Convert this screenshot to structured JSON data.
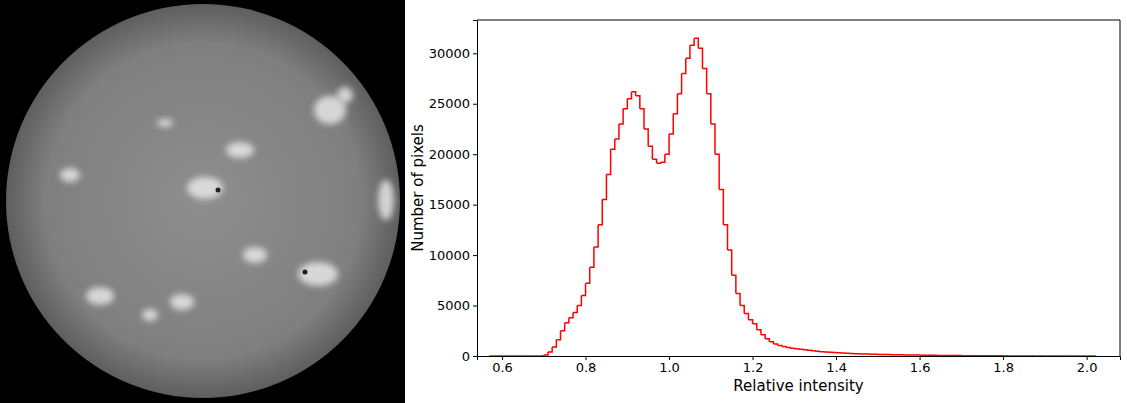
{
  "chart_data": {
    "type": "histogram",
    "x_label": "Relative intensity",
    "y_label": "Number of pixels",
    "color": "#ff0000",
    "xlim": [
      0.54,
      2.08
    ],
    "ylim": [
      0,
      33300
    ],
    "xticks": [
      0.6,
      0.8,
      {
        "value": 1,
        "label": "1.0"
      },
      1.2,
      1.4,
      1.6,
      1.8,
      {
        "value": 2,
        "label": "2.0"
      }
    ],
    "yticks": [
      0,
      5000,
      10000,
      15000,
      20000,
      25000,
      30000
    ],
    "bins": [
      0.57,
      0.58,
      0.59,
      0.6,
      0.61,
      0.62,
      0.63,
      0.64,
      0.65,
      0.66,
      0.67,
      0.68,
      0.69,
      0.7,
      0.71,
      0.72,
      0.73,
      0.74,
      0.75,
      0.76,
      0.77,
      0.78,
      0.79,
      0.8,
      0.81,
      0.82,
      0.83,
      0.84,
      0.85,
      0.86,
      0.87,
      0.88,
      0.89,
      0.9,
      0.91,
      0.92,
      0.93,
      0.94,
      0.95,
      0.96,
      0.97,
      0.98,
      0.99,
      1.0,
      1.01,
      1.02,
      1.03,
      1.04,
      1.05,
      1.06,
      1.07,
      1.08,
      1.09,
      1.1,
      1.11,
      1.12,
      1.13,
      1.14,
      1.15,
      1.16,
      1.17,
      1.18,
      1.19,
      1.2,
      1.21,
      1.22,
      1.23,
      1.24,
      1.25,
      1.26,
      1.27,
      1.28,
      1.29,
      1.3,
      1.31,
      1.32,
      1.33,
      1.34,
      1.35,
      1.36,
      1.37,
      1.38,
      1.39,
      1.4,
      1.41,
      1.42,
      1.43,
      1.44,
      1.45,
      1.46,
      1.47,
      1.48,
      1.49,
      1.5,
      1.51,
      1.52,
      1.53,
      1.54,
      1.55,
      1.56,
      1.57,
      1.58,
      1.59,
      1.6,
      1.61,
      1.62,
      1.63,
      1.64,
      1.65,
      1.66,
      1.67,
      1.68,
      1.69,
      1.7,
      1.71,
      1.72,
      1.73,
      1.74,
      1.75,
      1.76,
      1.77,
      1.78,
      1.79,
      1.8,
      1.81,
      1.82,
      1.83,
      1.84,
      1.85,
      1.86,
      1.87,
      1.88,
      1.89,
      1.9,
      1.91,
      1.92,
      1.93,
      1.94,
      1.95,
      1.96,
      1.97,
      1.98,
      1.99,
      2.0,
      2.01,
      2.02
    ],
    "counts": [
      0,
      0,
      0,
      0,
      0,
      0,
      0,
      0,
      0,
      0,
      0,
      0,
      0,
      100,
      400,
      900,
      1600,
      2500,
      3300,
      3800,
      4300,
      5000,
      6000,
      7200,
      8800,
      10800,
      13000,
      15500,
      18000,
      20500,
      21500,
      23000,
      24500,
      25500,
      26200,
      25800,
      24500,
      22500,
      20800,
      19500,
      19100,
      19200,
      20000,
      22000,
      24000,
      26000,
      28000,
      29500,
      30800,
      31500,
      30500,
      28500,
      26000,
      23000,
      20000,
      16500,
      13000,
      10500,
      8000,
      6200,
      5000,
      4200,
      3600,
      3200,
      2600,
      2100,
      1700,
      1400,
      1200,
      1050,
      950,
      850,
      780,
      720,
      660,
      610,
      560,
      510,
      470,
      430,
      400,
      370,
      340,
      310,
      290,
      270,
      250,
      235,
      220,
      205,
      190,
      180,
      170,
      160,
      150,
      140,
      130,
      122,
      115,
      108,
      100,
      94,
      88,
      82,
      76,
      70,
      65,
      60,
      55,
      50,
      46,
      42,
      38,
      35,
      32,
      29,
      26,
      24,
      22,
      20,
      18,
      16,
      14,
      12,
      11,
      10,
      9,
      8,
      7,
      6,
      5,
      5,
      4,
      4,
      3,
      3,
      3,
      2,
      2,
      2,
      1,
      1,
      1,
      1,
      1
    ]
  }
}
